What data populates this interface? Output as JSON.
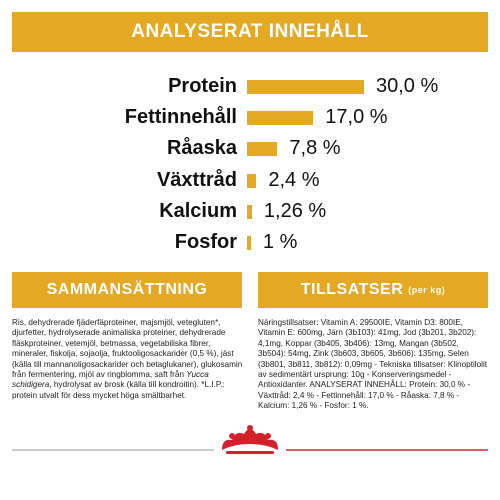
{
  "header": {
    "title": "ANALYSERAT INNEHÅLL"
  },
  "nutrients": [
    {
      "label": "Protein",
      "value": 30.0,
      "value_label": "30,0 %"
    },
    {
      "label": "Fettinnehåll",
      "value": 17.0,
      "value_label": "17,0 %"
    },
    {
      "label": "Råaska",
      "value": 7.8,
      "value_label": "7,8 %"
    },
    {
      "label": "Växttråd",
      "value": 2.4,
      "value_label": "2,4 %"
    },
    {
      "label": "Kalcium",
      "value": 1.26,
      "value_label": "1,26 %"
    },
    {
      "label": "Fosfor",
      "value": 1,
      "value_label": "1 %"
    }
  ],
  "composition": {
    "title": "SAMMANSÄTTNING",
    "text_before": "Ris, dehydrerade fjäderfäproteiner, majsmjöl, vetegluten*, djurfetter, hydrolyserade animaliska proteiner, dehydrerade fläskproteiner, vetemjöl, betmassa, vegetabiliska fibrer, mineraler, fiskolja, sojaolja, fruktooligosackarider (0,5 %), jäst (källa till mannanoligosackarider och betaglukaner), glukosamin från fermentering, mjöl av ringblomma, saft från",
    "text_italic": "Yucca schidigera",
    "text_after": ", hydrolysat av brosk (källa till kondroitin). *L.I.P.: protein utvalt för dess mycket höga smältbarhet."
  },
  "additives": {
    "title": "TILLSATSER",
    "subtitle": "(per kg)",
    "text": "Näringstillsatser: Vitamin A: 29500IE, Vitamin D3: 800IE, Vitamin E: 600mg, Järn (3b103): 41mg, Jod (3b201, 3b202): 4,1mg, Koppar (3b405, 3b406): 13mg, Mangan (3b502, 3b504): 54mg, Zink (3b603, 3b605, 3b606): 135mg, Selen (3b801, 3b811, 3b812): 0,09mg - Tekniska tillsatser: Klinoptilolit av sedimentärt ursprung: 10g - Konserveringsmedel - Antioxidanter. ANALYSERAT INNEHÅLL: Protein: 30,0 % - Växttråd: 2,4 % - Fettinnehåll: 17,0 % - Råaska: 7,8 % - Kalcium: 1,26 % - Fosfor: 1 %."
  }
}
